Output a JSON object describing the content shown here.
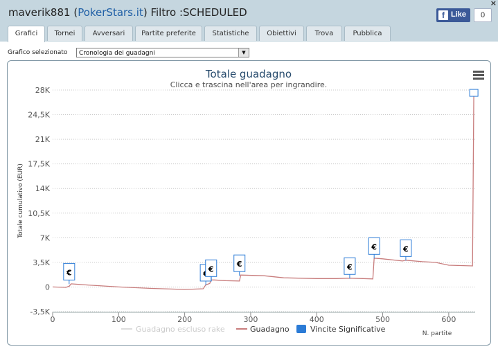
{
  "header": {
    "user": "maverik881",
    "open_paren": " (",
    "site": "PokerStars.it",
    "filter_text": ") Filtro :SCHEDULED",
    "close": "×",
    "fb_like": "Like",
    "fb_count": "0"
  },
  "tabs": [
    {
      "label": "Grafici",
      "active": true
    },
    {
      "label": "Tornei"
    },
    {
      "label": "Avversari"
    },
    {
      "label": "Partite preferite"
    },
    {
      "label": "Statistiche"
    },
    {
      "label": "Obiettivi"
    },
    {
      "label": "Trova"
    },
    {
      "label": "Pubblica"
    }
  ],
  "selector": {
    "label": "Grafico selezionato",
    "value": "Cronologia dei guadagni"
  },
  "colors": {
    "line": "#c87c7c",
    "line_ex_rake": "#dddddd",
    "marker": "#2b7bd6",
    "grid": "#c9c9c9"
  },
  "chart_data": {
    "type": "line",
    "title": "Totale guadagno",
    "subtitle": "Clicca e trascina nell'area per ingrandire.",
    "xlabel": "N. partite",
    "ylabel": "Totale cumulativo (EUR)",
    "xlim": [
      0,
      640
    ],
    "ylim": [
      -3500,
      28000
    ],
    "x_ticks": [
      0,
      100,
      200,
      300,
      400,
      500,
      600
    ],
    "y_ticks": [
      {
        "value": 28000,
        "label": "28K"
      },
      {
        "value": 24500,
        "label": "24,5K"
      },
      {
        "value": 21000,
        "label": "21K"
      },
      {
        "value": 17500,
        "label": "17,5K"
      },
      {
        "value": 14000,
        "label": "14K"
      },
      {
        "value": 10500,
        "label": "10,5K"
      },
      {
        "value": 7000,
        "label": "7K"
      },
      {
        "value": 3500,
        "label": "3,5K"
      },
      {
        "value": 0,
        "label": "0"
      },
      {
        "value": -3500,
        "label": "-3,5K"
      }
    ],
    "legend": [
      "Guadagno escluso rake",
      "Guadagno",
      "Vincite Significative"
    ],
    "series": [
      {
        "name": "Guadagno",
        "x": [
          0,
          20,
          25,
          28,
          50,
          100,
          150,
          200,
          215,
          228,
          232,
          238,
          240,
          245,
          262,
          283,
          285,
          320,
          350,
          400,
          430,
          450,
          470,
          485,
          487,
          500,
          530,
          535,
          560,
          580,
          600,
          636,
          638,
          640
        ],
        "y": [
          0,
          -50,
          100,
          450,
          300,
          0,
          -200,
          -350,
          -300,
          -250,
          300,
          500,
          1000,
          1000,
          900,
          850,
          1700,
          1600,
          1300,
          1200,
          1200,
          1250,
          1200,
          1150,
          4100,
          4000,
          3700,
          3800,
          3600,
          3500,
          3100,
          3000,
          27500,
          27500
        ]
      }
    ],
    "significant_wins": [
      {
        "x": 25,
        "y": 400,
        "label": "€"
      },
      {
        "x": 232,
        "y": 250,
        "label": "€"
      },
      {
        "x": 240,
        "y": 900,
        "label": "€"
      },
      {
        "x": 283,
        "y": 1600,
        "label": "€"
      },
      {
        "x": 450,
        "y": 1200,
        "label": "€"
      },
      {
        "x": 487,
        "y": 4050,
        "label": "€"
      },
      {
        "x": 535,
        "y": 3750,
        "label": "€"
      },
      {
        "x": 638,
        "y": 27500,
        "label": ""
      }
    ]
  }
}
